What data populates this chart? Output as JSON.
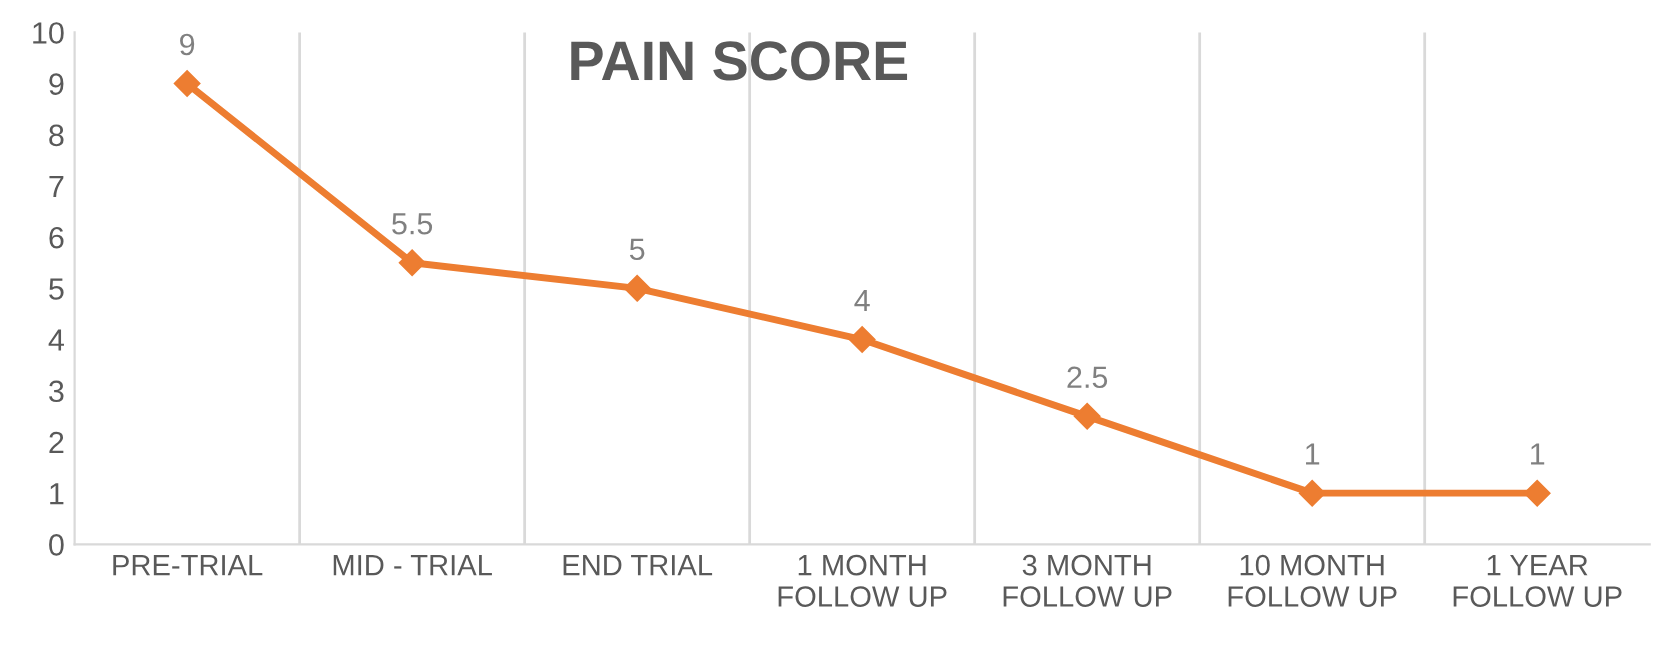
{
  "chart_data": {
    "type": "line",
    "title": "PAIN SCORE",
    "categories": [
      "PRE-TRIAL",
      "MID - TRIAL",
      "END TRIAL",
      "1 MONTH\nFOLLOW UP",
      "3 MONTH\nFOLLOW UP",
      "10 MONTH\nFOLLOW UP",
      "1 YEAR\nFOLLOW UP"
    ],
    "series": [
      {
        "color": "#ed7d31",
        "values": [
          9,
          5.5,
          5,
          4,
          2.5,
          1,
          1
        ]
      }
    ],
    "ylim": [
      0,
      10
    ],
    "yticks": [
      0,
      1,
      2,
      3,
      4,
      5,
      6,
      7,
      8,
      9,
      10
    ],
    "grid": "x",
    "marker": "diamond",
    "line_style": "solid",
    "data_labels": true,
    "legend": false
  }
}
